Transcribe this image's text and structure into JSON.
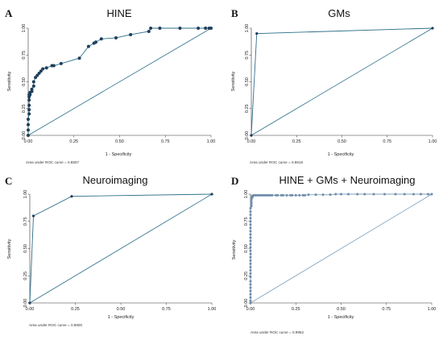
{
  "chart_data": [
    {
      "id": "A",
      "type": "line",
      "letter": "A",
      "title": "HINE",
      "xlabel": "1 - Specificity",
      "ylabel": "Sensitivity",
      "xlim": [
        0,
        1
      ],
      "ylim": [
        0,
        1
      ],
      "xticks": [
        "0.00",
        "0.25",
        "0.50",
        "0.75",
        "1.00"
      ],
      "yticks": [
        "0.00",
        "0.25",
        "0.50",
        "0.75",
        "1.00"
      ],
      "auc_text": "Area under ROC curve = 0.8507",
      "line_color": "#2d6f8a",
      "marker_color": "#1f3f5b",
      "marker_r": 2.0,
      "line_width": 0.9,
      "series": [
        {
          "x": [
            0,
            0,
            0,
            0,
            0.005,
            0.005,
            0.005,
            0.005,
            0.005,
            0.005,
            0.01,
            0.01,
            0.02,
            0.02,
            0.03,
            0.03,
            0.04,
            0.05,
            0.06,
            0.07,
            0.08,
            0.1,
            0.13,
            0.14,
            0.18,
            0.28,
            0.33,
            0.36,
            0.37,
            0.4,
            0.48,
            0.56,
            0.66,
            0.67,
            0.72,
            0.83,
            0.93,
            0.97,
            0.99,
            1.0
          ],
          "y": [
            0,
            0.05,
            0.1,
            0.15,
            0.2,
            0.24,
            0.28,
            0.33,
            0.36,
            0.38,
            0.38,
            0.4,
            0.41,
            0.43,
            0.46,
            0.5,
            0.54,
            0.56,
            0.58,
            0.6,
            0.62,
            0.63,
            0.65,
            0.65,
            0.67,
            0.72,
            0.83,
            0.86,
            0.87,
            0.9,
            0.91,
            0.94,
            0.97,
            1.0,
            1.0,
            1.0,
            1.0,
            1.0,
            1.0,
            1.0
          ]
        }
      ]
    },
    {
      "id": "B",
      "type": "line",
      "letter": "B",
      "title": "GMs",
      "xlabel": "1 - Specificity",
      "ylabel": "Sensitivity",
      "xlim": [
        0,
        1
      ],
      "ylim": [
        0,
        1
      ],
      "xticks": [
        "0.00",
        "0.25",
        "0.50",
        "0.75",
        "1.00"
      ],
      "yticks": [
        "0.00",
        "0.25",
        "0.50",
        "0.75",
        "1.00"
      ],
      "auc_text": "Area under ROC curve = 0.9616",
      "line_color": "#2d6f8a",
      "marker_color": "#1f3f5b",
      "marker_r": 1.6,
      "line_width": 0.9,
      "series": [
        {
          "x": [
            0,
            0.03,
            1.0
          ],
          "y": [
            0,
            0.95,
            1.0
          ]
        }
      ]
    },
    {
      "id": "C",
      "type": "line",
      "letter": "C",
      "title": "Neuroimaging",
      "xlabel": "1 - Specificity",
      "ylabel": "Sensitivity",
      "xlim": [
        0,
        1
      ],
      "ylim": [
        0,
        1
      ],
      "xticks": [
        "0.00",
        "0.25",
        "0.50",
        "0.75",
        "1.00"
      ],
      "yticks": [
        "0.00",
        "0.25",
        "0.50",
        "0.75",
        "1.00"
      ],
      "auc_text": "Area under ROC curve = 0.9600",
      "line_color": "#2d6f8a",
      "marker_color": "#1f3f5b",
      "marker_r": 1.6,
      "line_width": 0.9,
      "series": [
        {
          "x": [
            0,
            0.02,
            0.23,
            1.0
          ],
          "y": [
            0,
            0.8,
            0.98,
            1.0
          ]
        }
      ]
    },
    {
      "id": "D",
      "type": "line",
      "letter": "D",
      "title": "HINE + GMs + Neuroimaging",
      "xlabel": "1 - Specificity",
      "ylabel": "Sensitivity",
      "xlim": [
        0,
        1
      ],
      "ylim": [
        0,
        1
      ],
      "xticks": [
        "0.00",
        "0.25",
        "0.50",
        "0.75",
        "1.00"
      ],
      "yticks": [
        "0.00",
        "0.25",
        "0.50",
        "0.75",
        "1.00"
      ],
      "auc_text": "Area under ROC curve = 0.9952",
      "line_color": "#7f9fb8",
      "marker_color": "#6d8cab",
      "marker_r": 1.5,
      "line_width": 0.9,
      "series": [
        {
          "x": [
            0,
            0,
            0,
            0,
            0,
            0,
            0,
            0,
            0,
            0,
            0,
            0,
            0,
            0,
            0,
            0,
            0,
            0,
            0,
            0,
            0,
            0,
            0,
            0,
            0,
            0,
            0,
            0,
            0,
            0,
            0.005,
            0.005,
            0.005,
            0.005,
            0.005,
            0.01,
            0.01,
            0.01,
            0.01,
            0.02,
            0.02,
            0.03,
            0.04,
            0.05,
            0.06,
            0.07,
            0.08,
            0.09,
            0.1,
            0.11,
            0.12,
            0.14,
            0.15,
            0.17,
            0.18,
            0.2,
            0.22,
            0.23,
            0.25,
            0.27,
            0.29,
            0.3,
            0.32,
            0.36,
            0.4,
            0.44,
            0.47,
            0.5,
            0.54,
            0.59,
            0.63,
            0.68,
            0.74,
            0.8,
            0.85,
            0.9,
            0.94,
            0.98,
            1.0
          ],
          "y": [
            0,
            0.02,
            0.05,
            0.08,
            0.11,
            0.14,
            0.17,
            0.2,
            0.24,
            0.27,
            0.3,
            0.33,
            0.36,
            0.39,
            0.42,
            0.45,
            0.48,
            0.51,
            0.54,
            0.57,
            0.6,
            0.63,
            0.66,
            0.69,
            0.72,
            0.75,
            0.78,
            0.81,
            0.84,
            0.87,
            0.89,
            0.91,
            0.93,
            0.95,
            0.96,
            0.97,
            0.975,
            0.98,
            0.985,
            0.99,
            0.99,
            0.99,
            0.99,
            0.99,
            0.99,
            0.99,
            0.99,
            0.99,
            0.99,
            0.99,
            0.99,
            0.99,
            0.99,
            0.99,
            0.99,
            0.99,
            0.99,
            0.99,
            0.99,
            0.99,
            0.99,
            0.99,
            0.995,
            0.995,
            0.995,
            0.995,
            1.0,
            1.0,
            1.0,
            1.0,
            1.0,
            1.0,
            1.0,
            1.0,
            1.0,
            1.0,
            1.0,
            1.0,
            1.0
          ]
        }
      ]
    }
  ]
}
